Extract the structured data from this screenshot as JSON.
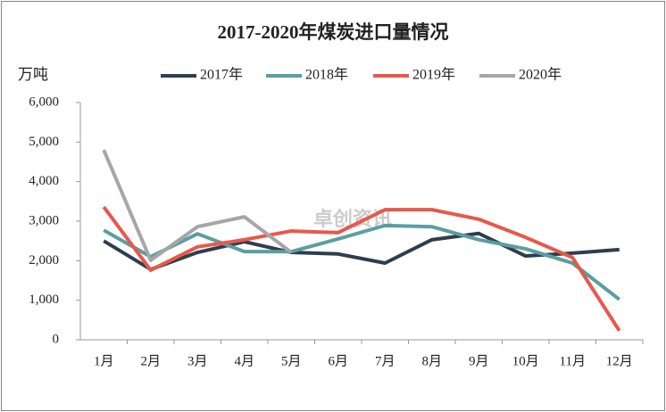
{
  "chart_data": {
    "type": "line",
    "title": "2017-2020年煤炭进口量情况",
    "y_label": "万吨",
    "watermark": "卓创资讯",
    "categories": [
      "1月",
      "2月",
      "3月",
      "4月",
      "5月",
      "6月",
      "7月",
      "8月",
      "9月",
      "10月",
      "11月",
      "12月"
    ],
    "series": [
      {
        "name": "2017年",
        "color": "#2d3e4f",
        "values": [
          2500,
          1780,
          2210,
          2480,
          2210,
          2170,
          1940,
          2530,
          2690,
          2120,
          2190,
          2280
        ]
      },
      {
        "name": "2018年",
        "color": "#5a9ea0",
        "values": [
          2770,
          2100,
          2680,
          2230,
          2230,
          2550,
          2890,
          2860,
          2530,
          2300,
          1940,
          1020
        ]
      },
      {
        "name": "2019年",
        "color": "#e8584a",
        "values": [
          3360,
          1760,
          2350,
          2530,
          2750,
          2710,
          3290,
          3290,
          3050,
          2590,
          2080,
          230
        ]
      },
      {
        "name": "2020年",
        "color": "#a6a6a6",
        "values": [
          4800,
          2010,
          2860,
          3110,
          2210,
          null,
          null,
          null,
          null,
          null,
          null,
          null
        ]
      }
    ],
    "ylim": [
      0,
      6000
    ],
    "yticks": [
      0,
      {
        "value": 1000,
        "label": "1,000"
      },
      {
        "value": 2000,
        "label": "2,000"
      },
      {
        "value": 3000,
        "label": "3,000"
      },
      {
        "value": 4000,
        "label": "4,000"
      },
      {
        "value": 5000,
        "label": "5,000"
      },
      {
        "value": 6000,
        "label": "6,000"
      }
    ],
    "legend": "top"
  }
}
